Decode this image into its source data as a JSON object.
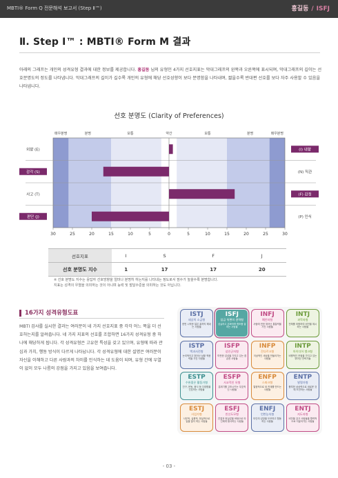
{
  "header": {
    "doc_title": "MBTI® Form Q 전문해석 보고서 (Step Ⅱ™)",
    "user_name": "홍길동",
    "separator": "/",
    "user_type": "ISFJ"
  },
  "section": {
    "title": "Ⅱ. Step Ⅰ™ : MBTI® Form M 결과",
    "intro_part1": "아래의 그래프는 개인의 성격유형 결과에 대한 정보를 제공합니다.",
    "intro_name": "홍길동",
    "intro_part2": "님의 유형인 4가지 선호지표는 막대그래프의 왼쪽과 오른쪽에 표시되며, 막대그래프의 길이는 선호분명도의 정도를 나타냅니다. 막대그래프의 길이가 길수록 개인의 유형에 해당 선호성향이 보다 분명함을 나타내며, 짧을수록 반대편 선호를 보다 자주 사용할 수 있음을 나타냅니다."
  },
  "chart_data": {
    "type": "bar",
    "title": "선호 분명도 (Clarity of Preferences)",
    "zone_labels": [
      "매우분명",
      "분명",
      "보통",
      "약간",
      "보통",
      "분명",
      "매우분명"
    ],
    "categories": [
      {
        "left": "외향 (E)",
        "right": "(I) 내향"
      },
      {
        "left": "감각 (S)",
        "right": "(N) 직관"
      },
      {
        "left": "사고 (T)",
        "right": "(F) 감정"
      },
      {
        "left": "판단 (J)",
        "right": "(P) 인식"
      }
    ],
    "series": [
      {
        "values": [
          1,
          -17,
          17,
          -20
        ]
      }
    ],
    "preferred_side": [
      "right",
      "left",
      "right",
      "left"
    ],
    "xlim": [
      -30,
      30
    ],
    "ticks": [
      "30",
      "25",
      "20",
      "15",
      "10",
      "5",
      "0",
      "5",
      "10",
      "15",
      "20",
      "25",
      "30"
    ],
    "bar_color": "#7b2a6b"
  },
  "score_table": {
    "row1_label": "선호지표",
    "row1": [
      "I",
      "S",
      "F",
      "J"
    ],
    "row2_label": "선호 분명도 지수",
    "row2": [
      "1",
      "17",
      "17",
      "20"
    ]
  },
  "notes": [
    "※ 선호 분명도 지수는 응답자 선호방향을 얼마나 분명히 하는지를 나타내는 정도로서 점수가 높을수록 분명합니다.",
    "   지표는 성격의 우열을 의미하는 것이 아니며 능력 및 발달수준을 의미하는 것도 아닙니다."
  ],
  "types_section": {
    "title": "16가지 성격유형도표",
    "text": "MBTI 검사를 실시한 결과는 여러분이 네 가지 선호지표 중 각각 어느 쪽을 더 선호하는지를 알려줍니다. 네 가지 지표의 선호를 조합하면 16가지 성격유형 중 하나에 해당하게 됩니다. 각 성격유형은 고유한 특성을 갖고 있으며, 유형에 따라 관심과 가치, 행동 방식이 다르게 나타납니다. 각 성격유형에 대한 설명은 여러분이 자신을 이해하고 다른 사람과의 차이를 인식하는 데 도움이 되며, 유형 간에 우열이 없이 모두 나름의 강점을 가지고 있음을 보여줍니다."
  },
  "type_grid": [
    {
      "code": "ISTJ",
      "sub": "세상의 소금형",
      "desc": "한번 시작한 일은 끝까지 해내는 사람들",
      "bg": "#e9edf6",
      "color": "#5a6fa5",
      "active": false
    },
    {
      "code": "ISFJ",
      "sub": "임금 뒤편의 권력형",
      "desc": "성실하고 온화하며 협조를 잘하는 사람들",
      "bg": "#56a7a3",
      "color": "#ffffff",
      "active": true
    },
    {
      "code": "INFJ",
      "sub": "예언자형",
      "desc": "사람에 관한 뛰어난 통찰력을 가진 사람들",
      "bg": "#fbeaf1",
      "color": "#c04a84",
      "active": false
    },
    {
      "code": "INTJ",
      "sub": "과학자형",
      "desc": "전체를 조합하여 비전을 제시하는 사람들",
      "bg": "#eef4e2",
      "color": "#6b9a3a",
      "active": false
    },
    {
      "code": "ISTP",
      "sub": "백과사전형",
      "desc": "논리적이고 뛰어난 상황 적응력을 가진 사람들",
      "bg": "#e9edf6",
      "color": "#5a6fa5",
      "active": false
    },
    {
      "code": "ISFP",
      "sub": "성인군자형",
      "desc": "따뜻한 감성을 가지고 있는 겸손한 사람들",
      "bg": "#fbeaf1",
      "color": "#c04a84",
      "active": false
    },
    {
      "code": "INFP",
      "sub": "잔다르크형",
      "desc": "이상적인 세상을 만들어가는 사람들",
      "bg": "#fdf0e2",
      "color": "#d88a3a",
      "active": false
    },
    {
      "code": "INTP",
      "sub": "아이디어 뱅크형",
      "desc": "비평적인 관점을 가지고 있는 뛰어난 전략가들",
      "bg": "#eef4e2",
      "color": "#6b9a3a",
      "active": false
    },
    {
      "code": "ESTP",
      "sub": "수완좋은 활동가형",
      "desc": "친구, 운동, 음식 등 다양함을 선호하는 사람들",
      "bg": "#e6f3f3",
      "color": "#3d8f8f",
      "active": false
    },
    {
      "code": "ESFP",
      "sub": "사교적인 유형",
      "desc": "분위기를 고조시키는 우호적인 사람들",
      "bg": "#fbeaf1",
      "color": "#c04a84",
      "active": false
    },
    {
      "code": "ENFP",
      "sub": "스파크형",
      "desc": "열정적으로 새 관계를 만드는 사람들",
      "bg": "#fdf0e2",
      "color": "#d88a3a",
      "active": false
    },
    {
      "code": "ENTP",
      "sub": "발명가형",
      "desc": "풍부한 상상력으로 새로운 것에 도전하는 사람들",
      "bg": "#e9edf6",
      "color": "#5a6fa5",
      "active": false
    },
    {
      "code": "ESTJ",
      "sub": "사업가형",
      "desc": "사무적, 실용적, 현실적으로 일을 많이 하는 사람들",
      "bg": "#fdf0e2",
      "color": "#d88a3a",
      "active": false
    },
    {
      "code": "ESFJ",
      "sub": "친선도모형",
      "desc": "친절과 현실감을 바탕으로 타인에게 봉사하는 사람들",
      "bg": "#fbeaf1",
      "color": "#c04a84",
      "active": false
    },
    {
      "code": "ENFJ",
      "sub": "언변능숙형",
      "desc": "타인의 성장을 도모하고 협동하는 사람들",
      "bg": "#e9edf6",
      "color": "#5a6fa5",
      "active": false
    },
    {
      "code": "ENTJ",
      "sub": "지도자형",
      "desc": "비전을 갖고 사람들을 활력적으로 이끌어가는 사람들",
      "bg": "#fbeaf1",
      "color": "#c04a84",
      "active": false
    }
  ],
  "page_number": "- 03 -"
}
